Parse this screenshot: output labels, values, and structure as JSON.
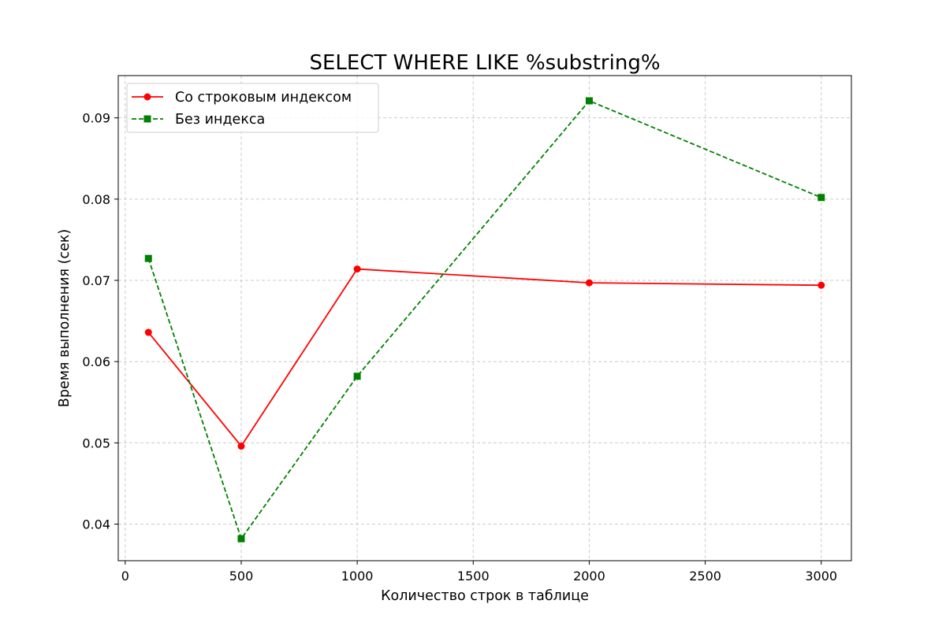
{
  "chart_data": {
    "type": "line",
    "title": "SELECT WHERE LIKE %substring%",
    "xlabel": "Количество строк в таблице",
    "ylabel": "Время выполнения (сек)",
    "xlim": [
      -30,
      3130
    ],
    "ylim": [
      0.0355,
      0.0952
    ],
    "xticks": [
      0,
      500,
      1000,
      1500,
      2000,
      2500,
      3000
    ],
    "xtick_labels": [
      "0",
      "500",
      "1000",
      "1500",
      "2000",
      "2500",
      "3000"
    ],
    "yticks": [
      0.04,
      0.05,
      0.06,
      0.07,
      0.08,
      0.09
    ],
    "ytick_labels": [
      "0.04",
      "0.05",
      "0.06",
      "0.07",
      "0.08",
      "0.09"
    ],
    "grid": true,
    "legend_position": "top-left",
    "series": [
      {
        "name": "Со строковым индексом",
        "x": [
          100,
          500,
          1000,
          2000,
          3000
        ],
        "y": [
          0.0636,
          0.0496,
          0.0714,
          0.0697,
          0.0694
        ],
        "color": "#ff0000",
        "line_style": "solid",
        "marker": "circle"
      },
      {
        "name": "Без индекса",
        "x": [
          100,
          500,
          1000,
          2000,
          3000
        ],
        "y": [
          0.0727,
          0.0382,
          0.0582,
          0.0921,
          0.0802
        ],
        "color": "#008000",
        "line_style": "dashed",
        "marker": "square"
      }
    ]
  }
}
